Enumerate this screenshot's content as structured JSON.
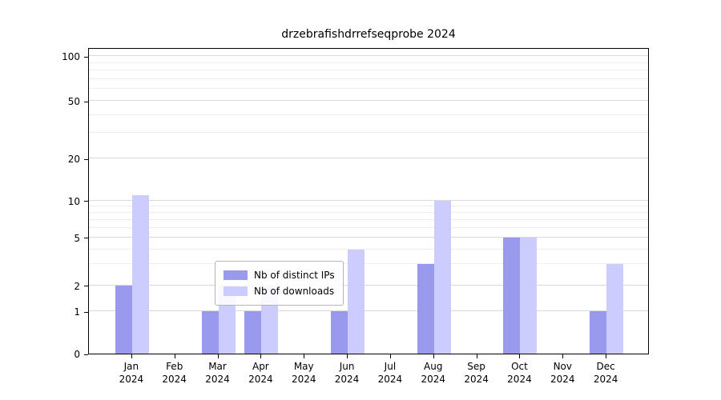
{
  "title": "drzebrafishdrrefseqprobe 2024",
  "chart_data": {
    "type": "bar",
    "title": "drzebrafishdrrefseqprobe 2024",
    "categories": [
      "Jan",
      "Feb",
      "Mar",
      "Apr",
      "May",
      "Jun",
      "Jul",
      "Aug",
      "Sep",
      "Oct",
      "Nov",
      "Dec"
    ],
    "category_year": "2024",
    "series": [
      {
        "name": "Nb of distinct IPs",
        "color": "#9999ee",
        "values": [
          2,
          0,
          1,
          1,
          0,
          1,
          0,
          3,
          0,
          5,
          0,
          1
        ]
      },
      {
        "name": "Nb of downloads",
        "color": "#ccccff",
        "values": [
          11,
          0,
          2,
          2,
          0,
          4,
          0,
          10,
          0,
          5,
          0,
          3
        ]
      }
    ],
    "xlabel": "",
    "ylabel": "",
    "yscale": "symlog",
    "yticks": [
      0,
      1,
      2,
      5,
      10,
      20,
      50,
      100
    ],
    "ytick_labels": [
      "0",
      "1",
      "2",
      "5",
      "10",
      "20",
      "50",
      "100"
    ],
    "yminor_ticks": [
      3,
      4,
      6,
      7,
      8,
      9,
      30,
      40,
      60,
      70,
      80,
      90
    ],
    "ylim": [
      0,
      140
    ],
    "grid": "horizontal",
    "legend_position": "lower center"
  }
}
